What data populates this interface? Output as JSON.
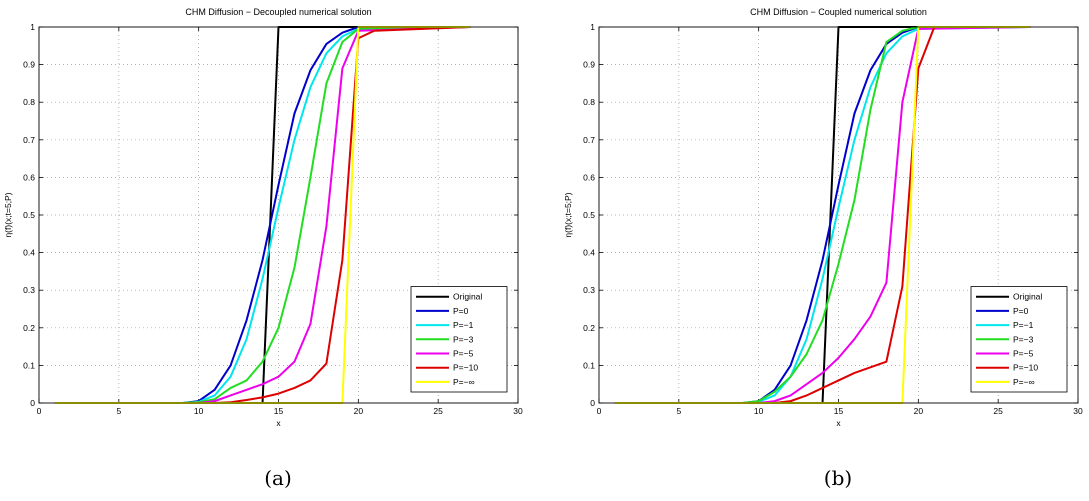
{
  "chart_data": [
    {
      "type": "line",
      "title": "CHM Diffusion − Decoupled numerical solution",
      "xlabel": "x",
      "ylabel": "η(f)(x;t=5;P)",
      "caption": "(a)",
      "xlim": [
        0,
        30
      ],
      "ylim": [
        0,
        1
      ],
      "xticks": [
        "0",
        "5",
        "10",
        "15",
        "20",
        "25",
        "30"
      ],
      "yticks": [
        "0",
        "0.1",
        "0.2",
        "0.3",
        "0.4",
        "0.5",
        "0.6",
        "0.7",
        "0.8",
        "0.9",
        "1"
      ],
      "grid": true,
      "legend_position": "bottom-right",
      "series": [
        {
          "name": "Original",
          "color": "#000000",
          "x": [
            1,
            14,
            15,
            27
          ],
          "y": [
            0,
            0,
            1,
            1
          ]
        },
        {
          "name": "P=0",
          "color": "#0000cc",
          "x": [
            1,
            9,
            10,
            11,
            12,
            13,
            14,
            15,
            16,
            17,
            18,
            19,
            20,
            27
          ],
          "y": [
            0,
            0,
            0.005,
            0.035,
            0.1,
            0.22,
            0.38,
            0.58,
            0.77,
            0.885,
            0.955,
            0.985,
            1,
            1
          ]
        },
        {
          "name": "P=−1",
          "color": "#00e6ee",
          "x": [
            1,
            9,
            10,
            11,
            12,
            13,
            14,
            15,
            16,
            17,
            18,
            19,
            20,
            27
          ],
          "y": [
            0,
            0,
            0.003,
            0.02,
            0.07,
            0.17,
            0.33,
            0.52,
            0.7,
            0.84,
            0.93,
            0.975,
            0.995,
            1
          ]
        },
        {
          "name": "P=−3",
          "color": "#22dd22",
          "x": [
            1,
            9,
            10,
            11,
            12,
            13,
            14,
            15,
            16,
            17,
            18,
            19,
            20,
            27
          ],
          "y": [
            0,
            0,
            0.002,
            0.01,
            0.04,
            0.06,
            0.11,
            0.2,
            0.36,
            0.6,
            0.85,
            0.96,
            0.995,
            1
          ]
        },
        {
          "name": "P=−5",
          "color": "#ee00ee",
          "x": [
            1,
            10,
            11,
            12,
            13,
            14,
            15,
            16,
            17,
            18,
            19,
            20,
            27
          ],
          "y": [
            0,
            0,
            0.005,
            0.02,
            0.035,
            0.05,
            0.07,
            0.11,
            0.21,
            0.47,
            0.89,
            0.99,
            1
          ]
        },
        {
          "name": "P=−10",
          "color": "#dd0000",
          "x": [
            1,
            11,
            12,
            13,
            14,
            15,
            16,
            17,
            18,
            19,
            20,
            21,
            27
          ],
          "y": [
            0,
            0,
            0.002,
            0.008,
            0.015,
            0.025,
            0.04,
            0.06,
            0.105,
            0.38,
            0.97,
            0.99,
            1
          ]
        },
        {
          "name": "P=−∞",
          "color": "#ffff00",
          "x": [
            1,
            19,
            20,
            27
          ],
          "y": [
            0,
            0,
            1,
            1
          ]
        }
      ]
    },
    {
      "type": "line",
      "title": "CHM Diffusion − Coupled numerical solution",
      "xlabel": "x",
      "ylabel": "η(f)(x;t=5;P)",
      "caption": "(b)",
      "xlim": [
        0,
        30
      ],
      "ylim": [
        0,
        1
      ],
      "xticks": [
        "0",
        "5",
        "10",
        "15",
        "20",
        "25",
        "30"
      ],
      "yticks": [
        "0",
        "0.1",
        "0.2",
        "0.3",
        "0.4",
        "0.5",
        "0.6",
        "0.7",
        "0.8",
        "0.9",
        "1"
      ],
      "grid": true,
      "legend_position": "bottom-right",
      "series": [
        {
          "name": "Original",
          "color": "#000000",
          "x": [
            1,
            14,
            15,
            27
          ],
          "y": [
            0,
            0,
            1,
            1
          ]
        },
        {
          "name": "P=0",
          "color": "#0000cc",
          "x": [
            1,
            9,
            10,
            11,
            12,
            13,
            14,
            15,
            16,
            17,
            18,
            19,
            20,
            27
          ],
          "y": [
            0,
            0,
            0.005,
            0.035,
            0.1,
            0.22,
            0.38,
            0.58,
            0.77,
            0.885,
            0.955,
            0.985,
            1,
            1
          ]
        },
        {
          "name": "P=−1",
          "color": "#00e6ee",
          "x": [
            1,
            9,
            10,
            11,
            12,
            13,
            14,
            15,
            16,
            17,
            18,
            19,
            20,
            27
          ],
          "y": [
            0,
            0,
            0.003,
            0.02,
            0.07,
            0.17,
            0.33,
            0.52,
            0.7,
            0.84,
            0.93,
            0.975,
            0.995,
            1
          ]
        },
        {
          "name": "P=−3",
          "color": "#22dd22",
          "x": [
            1,
            9,
            10,
            11,
            12,
            13,
            14,
            15,
            16,
            17,
            18,
            19,
            20,
            27
          ],
          "y": [
            0,
            0,
            0.005,
            0.03,
            0.07,
            0.13,
            0.22,
            0.37,
            0.54,
            0.78,
            0.96,
            0.99,
            1,
            1
          ]
        },
        {
          "name": "P=−5",
          "color": "#ee00ee",
          "x": [
            1,
            10,
            11,
            12,
            13,
            14,
            15,
            16,
            17,
            18,
            19,
            20,
            27
          ],
          "y": [
            0,
            0,
            0.005,
            0.02,
            0.05,
            0.08,
            0.12,
            0.17,
            0.23,
            0.32,
            0.8,
            0.995,
            1
          ]
        },
        {
          "name": "P=−10",
          "color": "#dd0000",
          "x": [
            1,
            11,
            12,
            13,
            14,
            15,
            16,
            17,
            18,
            19,
            20,
            21,
            27
          ],
          "y": [
            0,
            0,
            0.005,
            0.02,
            0.04,
            0.06,
            0.08,
            0.095,
            0.11,
            0.31,
            0.89,
            1,
            1
          ]
        },
        {
          "name": "P=−∞",
          "color": "#ffff00",
          "x": [
            1,
            19,
            20,
            27
          ],
          "y": [
            0,
            0,
            1,
            1
          ]
        }
      ]
    }
  ]
}
